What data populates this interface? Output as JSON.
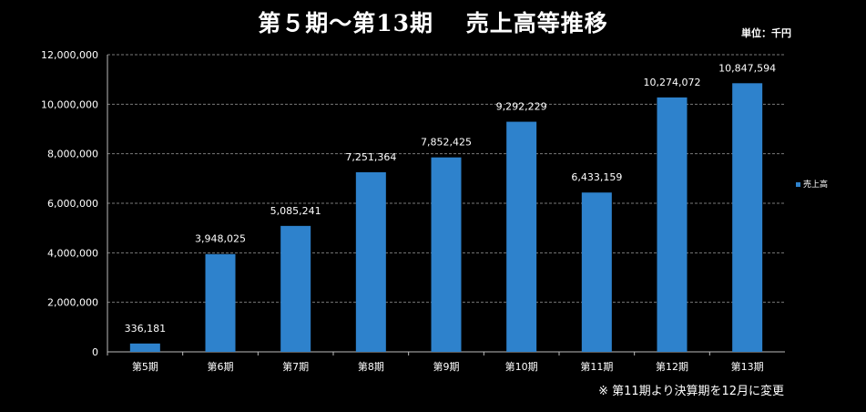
{
  "title": "第５期～第13期　 売上高等推移",
  "unit_label": "単位：千円",
  "note": "※ 第11期より決算期を12月に変更",
  "chart_data": {
    "type": "bar",
    "title": "第５期～第13期　 売上高等推移",
    "categories": [
      "第5期",
      "第6期",
      "第7期",
      "第8期",
      "第9期",
      "第10期",
      "第11期",
      "第12期",
      "第13期"
    ],
    "series": [
      {
        "name": "売上高",
        "values": [
          336181,
          3948025,
          5085241,
          7251364,
          7852425,
          9292229,
          6433159,
          10274072,
          10847594
        ]
      }
    ],
    "value_labels": [
      "336,181",
      "3,948,025",
      "5,085,241",
      "7,251,364",
      "7,852,425",
      "9,292,229",
      "6,433,159",
      "10,274,072",
      "10,847,594"
    ],
    "y_ticks": [
      "0",
      "2,000,000",
      "4,000,000",
      "6,000,000",
      "8,000,000",
      "10,000,000",
      "12,000,000"
    ],
    "ylim": [
      0,
      12000000
    ],
    "grid": true,
    "legend_position": "right",
    "colors": {
      "bar": "#2e82cc",
      "grid": "#7a7a7a",
      "axis": "#bdbdbd",
      "background": "#000000"
    }
  }
}
